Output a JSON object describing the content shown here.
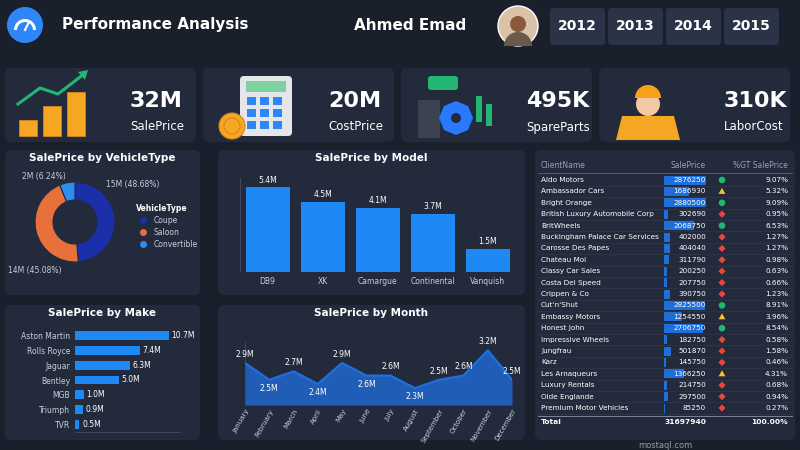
{
  "header": {
    "title": "Performance Analysis",
    "name": "Ahmed Emad",
    "years": [
      "2012",
      "2013",
      "2014",
      "2015"
    ]
  },
  "kpis": [
    {
      "value": "32M",
      "label": "SalePrice"
    },
    {
      "value": "20M",
      "label": "CostPrice"
    },
    {
      "value": "495K",
      "label": "SpareParts"
    },
    {
      "value": "310K",
      "label": "LaborCost"
    }
  ],
  "chart_data": [
    {
      "type": "donut",
      "title": "SalePrice by VehicleType",
      "categories": [
        "Coupe",
        "Saloon",
        "Convertible"
      ],
      "values": [
        48.68,
        45.08,
        6.24
      ],
      "value_labels": [
        "15M (48.68%)",
        "14M (45.08%)",
        "2M (6.24%)"
      ],
      "colors": [
        "#1a2fa8",
        "#e8703a",
        "#2b8ef0"
      ],
      "data_labels": true,
      "legend": "right",
      "legend_title": "VehicleType"
    },
    {
      "type": "bar",
      "title": "SalePrice by Model",
      "categories": [
        "DB9",
        "XK",
        "Camargue",
        "Continental",
        "Vanquish"
      ],
      "values": [
        5.4,
        4.5,
        4.1,
        3.7,
        1.5
      ],
      "value_labels": [
        "5.4M",
        "4.5M",
        "4.1M",
        "3.7M",
        "1.5M"
      ],
      "color": "#1e88f5",
      "ylim": [
        0,
        6
      ],
      "data_labels": true,
      "tick_labels": "x"
    },
    {
      "type": "bar",
      "orientation": "horizontal",
      "title": "SalePrice by Make",
      "categories": [
        "Aston Martin",
        "Rolls Royce",
        "Jaguar",
        "Bentley",
        "MGB",
        "Triumph",
        "TVR"
      ],
      "values": [
        10.7,
        7.4,
        6.3,
        5.0,
        1.0,
        0.9,
        0.5
      ],
      "value_labels": [
        "10.7M",
        "7.4M",
        "6.3M",
        "5.0M",
        "1.0M",
        "0.9M",
        "0.5M"
      ],
      "color": "#1e88f5",
      "xlim": [
        0,
        12
      ],
      "data_labels": true,
      "tick_labels": "y"
    },
    {
      "type": "area",
      "title": "SalePrice by Month",
      "categories": [
        "January",
        "February",
        "March",
        "April",
        "May",
        "June",
        "July",
        "August",
        "September",
        "October",
        "November",
        "December"
      ],
      "values": [
        2.9,
        2.5,
        2.7,
        2.4,
        2.9,
        2.6,
        2.6,
        2.3,
        2.5,
        2.6,
        3.2,
        2.5
      ],
      "value_labels": [
        "2.9M",
        "2.5M",
        "2.7M",
        "2.4M",
        "2.9M",
        "2.6M",
        "2.6M",
        "2.3M",
        "2.5M",
        "2.6M",
        "3.2M",
        "2.5M"
      ],
      "color": "#1f6fe0",
      "ylim": [
        1.9,
        3.4
      ],
      "data_labels": true,
      "tick_labels": "x"
    }
  ],
  "table": {
    "columns": [
      "ClientName",
      "SalePrice",
      "%GT SalePrice"
    ],
    "rows": [
      [
        "Aldo Motors",
        "2876250",
        "9.07%"
      ],
      [
        "Ambassador Cars",
        "1686930",
        "5.32%"
      ],
      [
        "Bright Orange",
        "2880500",
        "9.09%"
      ],
      [
        "British Luxury Automobile Corp",
        "302690",
        "0.95%"
      ],
      [
        "BritWheels",
        "2068750",
        "6.53%"
      ],
      [
        "Buckingham Palace Car Services",
        "402000",
        "1.27%"
      ],
      [
        "Carosse Des Papes",
        "404040",
        "1.27%"
      ],
      [
        "Chateau Moi",
        "311790",
        "0.98%"
      ],
      [
        "Classy Car Sales",
        "200250",
        "0.63%"
      ],
      [
        "Costa Del Speed",
        "207750",
        "0.66%"
      ],
      [
        "Crippen & Co",
        "390750",
        "1.23%"
      ],
      [
        "Cut'n'Shut",
        "2825500",
        "8.91%"
      ],
      [
        "Embassy Motors",
        "1254550",
        "3.96%"
      ],
      [
        "Honest John",
        "2706750",
        "8.54%"
      ],
      [
        "Impressive Wheels",
        "182750",
        "0.58%"
      ],
      [
        "Jungfrau",
        "501870",
        "1.58%"
      ],
      [
        "Karz",
        "145750",
        "0.46%"
      ],
      [
        "Les Arnaqueurs",
        "1366250",
        "4.31%"
      ],
      [
        "Luxury Rentals",
        "214750",
        "0.68%"
      ],
      [
        "Olde Englande",
        "297500",
        "0.94%"
      ],
      [
        "Premium Motor Vehicles",
        "85250",
        "0.27%"
      ]
    ],
    "total": [
      "Total",
      "31697940",
      "100.00%"
    ]
  },
  "watermark": "mostaql.com"
}
